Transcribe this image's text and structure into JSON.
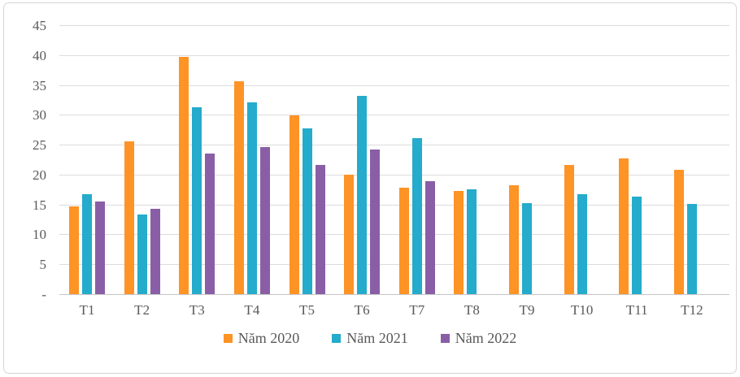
{
  "chart_data": {
    "type": "bar",
    "title": "",
    "categories": [
      "T1",
      "T2",
      "T3",
      "T4",
      "T5",
      "T6",
      "T7",
      "T8",
      "T9",
      "T10",
      "T11",
      "T12"
    ],
    "series": [
      {
        "name": "Năm 2020",
        "color": "#fe9326",
        "values": [
          14.8,
          25.7,
          39.8,
          35.7,
          30.0,
          20.1,
          18.0,
          17.4,
          18.4,
          21.7,
          22.9,
          20.9
        ]
      },
      {
        "name": "Năm 2021",
        "color": "#25abcb",
        "values": [
          16.9,
          13.4,
          31.4,
          32.2,
          27.9,
          33.3,
          26.3,
          17.7,
          15.3,
          16.9,
          16.5,
          15.2
        ]
      },
      {
        "name": "Năm 2022",
        "color": "#8a5ea6",
        "values": [
          15.7,
          14.4,
          23.7,
          24.7,
          21.8,
          24.3,
          19.0,
          null,
          null,
          null,
          null,
          null
        ]
      }
    ],
    "ylim": [
      0,
      45
    ],
    "yticks": [
      {
        "value": 45,
        "label": "45"
      },
      {
        "value": 40,
        "label": "40"
      },
      {
        "value": 35,
        "label": "35"
      },
      {
        "value": 30,
        "label": "30"
      },
      {
        "value": 25,
        "label": "25"
      },
      {
        "value": 20,
        "label": "20"
      },
      {
        "value": 15,
        "label": "15"
      },
      {
        "value": 10,
        "label": "10"
      },
      {
        "value": 5,
        "label": "5"
      },
      {
        "value": 0,
        "label": "-"
      }
    ],
    "grid": true,
    "legend_position": "bottom"
  },
  "colors": {
    "axis_text": "#595959",
    "gridline": "#dcdcdc",
    "baseline": "#c6c6c6",
    "frame_border": "#d5d5d5",
    "background": "#ffffff"
  }
}
